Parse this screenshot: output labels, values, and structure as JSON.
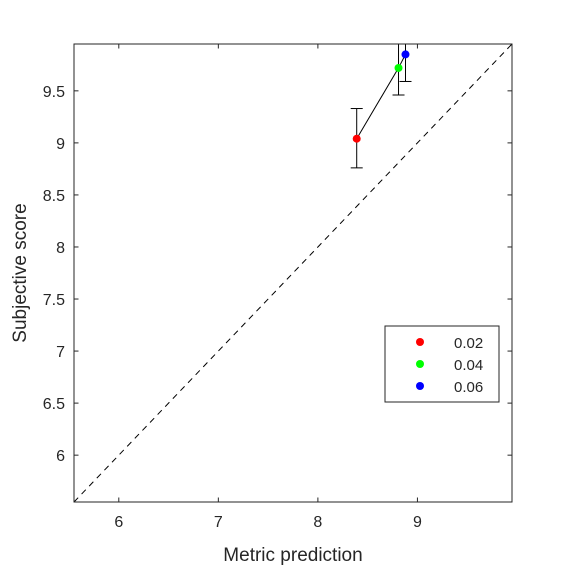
{
  "chart_data": {
    "type": "scatter",
    "xlabel": "Metric prediction",
    "ylabel": "Subjective score",
    "xlim": [
      5.55,
      9.95
    ],
    "ylim": [
      5.55,
      9.95
    ],
    "xticks": [
      6,
      7,
      8,
      9
    ],
    "yticks": [
      6,
      6.5,
      7,
      7.5,
      8,
      8.5,
      9,
      9.5
    ],
    "grid": false,
    "identity_line": true,
    "legend_position": "lower-right",
    "series": [
      {
        "name": "0.02",
        "color": "#ff0000",
        "x": 8.39,
        "y": 9.04,
        "yerr_low": 8.76,
        "yerr_high": 9.33
      },
      {
        "name": "0.04",
        "color": "#00ff00",
        "x": 8.81,
        "y": 9.72,
        "yerr_low": 9.46,
        "yerr_high": 9.98
      },
      {
        "name": "0.06",
        "color": "#0000ff",
        "x": 8.88,
        "y": 9.85,
        "yerr_low": 9.59,
        "yerr_high": 10.1
      }
    ]
  }
}
